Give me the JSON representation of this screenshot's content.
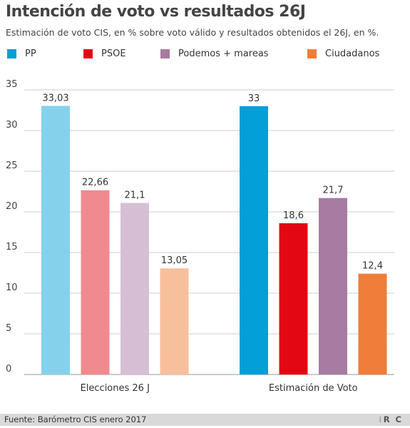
{
  "header": {
    "title": "Intención de voto vs resultados 26J",
    "subtitle": "Estimación de voto CIS, en % sobre voto válido y resultados obtenidos el 26J, en %."
  },
  "legend": [
    {
      "label": "PP",
      "color": "#029fd8"
    },
    {
      "label": "PSOE",
      "color": "#e30613"
    },
    {
      "label": "Podemos + mareas",
      "color": "#a77ba2"
    },
    {
      "label": "Ciudadanos",
      "color": "#f07d39"
    }
  ],
  "chart_data": {
    "type": "bar",
    "title": "Intención de voto vs resultados 26J",
    "subtitle": "Estimación de voto CIS, en % sobre voto válido y resultados obtenidos el 26J, en %.",
    "categories": [
      "Elecciones 26 J",
      "Estimación de Voto"
    ],
    "series": [
      {
        "name": "PP",
        "values": [
          33.03,
          33
        ],
        "labels": [
          "33,03",
          "33"
        ],
        "colors": [
          "#85d1ec",
          "#029fd8"
        ]
      },
      {
        "name": "PSOE",
        "values": [
          22.66,
          18.6
        ],
        "labels": [
          "22,66",
          "18,6"
        ],
        "colors": [
          "#f08a8f",
          "#e30613"
        ]
      },
      {
        "name": "Podemos + mareas",
        "values": [
          21.1,
          21.7
        ],
        "labels": [
          "21,1",
          "21,7"
        ],
        "colors": [
          "#d6bfd4",
          "#a77ba2"
        ]
      },
      {
        "name": "Ciudadanos",
        "values": [
          13.05,
          12.4
        ],
        "labels": [
          "13,05",
          "12,4"
        ],
        "colors": [
          "#f8bf9c",
          "#f07d39"
        ]
      }
    ],
    "yticks": [
      "0",
      "5",
      "10",
      "15",
      "20",
      "25",
      "30",
      "35"
    ],
    "ylim": [
      0,
      35
    ],
    "grid": true,
    "legend_position": "top",
    "xlabel": "",
    "ylabel": ""
  },
  "footer": {
    "source": "Fuente: Barómetro CIS enero 2017",
    "brand": "R C",
    "dots": "⁞"
  }
}
